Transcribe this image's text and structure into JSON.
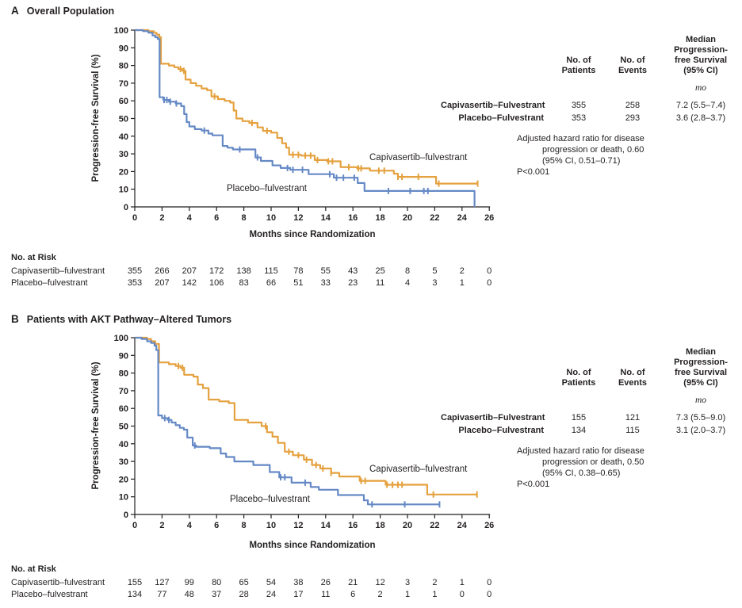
{
  "colors": {
    "capivasertib": "#E5A13E",
    "placebo": "#6589C5",
    "axis": "#231F20"
  },
  "figure": {
    "panels": [
      {
        "label": "A",
        "title": "Overall Population",
        "ylabel": "Progression-free Survival (%)",
        "xlabel": "Months since Randomization",
        "curve_labels": {
          "capivasertib": "Capivasertib–fulvestrant",
          "placebo": "Placebo–fulvestrant"
        },
        "stats": {
          "col_headers": [
            "No. of\nPatients",
            "No. of\nEvents",
            "Median\nProgression-\nfree Survival\n(95% CI)"
          ],
          "unit": "mo",
          "rows": [
            {
              "label": "Capivasertib–Fulvestrant",
              "patients": "355",
              "events": "258",
              "median": "7.2 (5.5–7.4)"
            },
            {
              "label": "Placebo–Fulvestrant",
              "patients": "353",
              "events": "293",
              "median": "3.6 (2.8–3.7)"
            }
          ],
          "hazard_lines": [
            "Adjusted hazard ratio for disease",
            "progression or death, 0.60",
            "(95% CI, 0.51–0.71)"
          ],
          "p_value": "P<0.001"
        },
        "risk": {
          "title": "No. at Risk",
          "rows": [
            {
              "label": "Capivasertib–fulvestrant",
              "values": [
                355,
                266,
                207,
                172,
                138,
                115,
                78,
                55,
                43,
                25,
                8,
                5,
                2,
                0
              ]
            },
            {
              "label": "Placebo–fulvestrant",
              "values": [
                353,
                207,
                142,
                106,
                83,
                66,
                51,
                33,
                23,
                11,
                4,
                3,
                1,
                0
              ]
            }
          ]
        }
      },
      {
        "label": "B",
        "title": "Patients with AKT Pathway–Altered Tumors",
        "ylabel": "Progression-free Survival (%)",
        "xlabel": "Months since Randomization",
        "curve_labels": {
          "capivasertib": "Capivasertib–fulvestrant",
          "placebo": "Placebo–fulvestrant"
        },
        "stats": {
          "col_headers": [
            "No. of\nPatients",
            "No. of\nEvents",
            "Median\nProgression-\nfree Survival\n(95% CI)"
          ],
          "unit": "mo",
          "rows": [
            {
              "label": "Capivasertib–Fulvestrant",
              "patients": "155",
              "events": "121",
              "median": "7.3 (5.5–9.0)"
            },
            {
              "label": "Placebo–Fulvestrant",
              "patients": "134",
              "events": "115",
              "median": "3.1 (2.0–3.7)"
            }
          ],
          "hazard_lines": [
            "Adjusted hazard ratio for disease",
            "progression or death, 0.50",
            "(95% CI, 0.38–0.65)"
          ],
          "p_value": "P<0.001"
        },
        "risk": {
          "title": "No. at Risk",
          "rows": [
            {
              "label": "Capivasertib–fulvestrant",
              "values": [
                155,
                127,
                99,
                80,
                65,
                54,
                38,
                26,
                21,
                12,
                3,
                2,
                1,
                0
              ]
            },
            {
              "label": "Placebo–fulvestrant",
              "values": [
                134,
                77,
                48,
                37,
                28,
                24,
                17,
                11,
                6,
                2,
                1,
                1,
                0,
                0
              ]
            }
          ]
        }
      }
    ]
  },
  "chart_data": [
    {
      "type": "line",
      "panel": "A",
      "title": "Overall Population",
      "subtype": "kaplan-meier",
      "xlabel": "Months since Randomization",
      "ylabel": "Progression-free Survival (%)",
      "xlim": [
        0,
        26
      ],
      "ylim": [
        0,
        100
      ],
      "xticks": [
        0,
        2,
        4,
        6,
        8,
        10,
        12,
        14,
        16,
        18,
        20,
        22,
        24,
        26
      ],
      "yticks": [
        0,
        10,
        20,
        30,
        40,
        50,
        60,
        70,
        80,
        90,
        100
      ],
      "grid": false,
      "series": [
        {
          "key": "capivasertib",
          "name": "Capivasertib–fulvestrant",
          "color": "#E5A13E",
          "median_months": "7.2 (5.5–7.4)",
          "steps": [
            [
              0,
              100
            ],
            [
              1.0,
              99.4
            ],
            [
              1.4,
              98.5
            ],
            [
              1.6,
              97.5
            ],
            [
              1.8,
              96
            ],
            [
              1.92,
              81
            ],
            [
              2.5,
              80
            ],
            [
              2.9,
              79
            ],
            [
              3.2,
              78
            ],
            [
              3.5,
              77
            ],
            [
              3.72,
              72
            ],
            [
              4.1,
              70
            ],
            [
              4.5,
              68.5
            ],
            [
              4.9,
              67
            ],
            [
              5.3,
              66
            ],
            [
              5.62,
              62.5
            ],
            [
              6.1,
              61
            ],
            [
              6.6,
              60
            ],
            [
              7.0,
              59
            ],
            [
              7.25,
              54.5
            ],
            [
              7.45,
              50
            ],
            [
              7.9,
              48.5
            ],
            [
              8.4,
              47.5
            ],
            [
              9.0,
              45
            ],
            [
              9.4,
              43
            ],
            [
              10.0,
              42
            ],
            [
              10.45,
              39
            ],
            [
              10.8,
              36
            ],
            [
              11.1,
              33.5
            ],
            [
              11.32,
              29.5
            ],
            [
              12.2,
              29
            ],
            [
              13.2,
              26.5
            ],
            [
              14.1,
              25.8
            ],
            [
              15.1,
              22.5
            ],
            [
              16.3,
              21.8
            ],
            [
              17.25,
              20.5
            ],
            [
              19.0,
              18.8
            ],
            [
              19.3,
              17
            ],
            [
              22.1,
              13.2
            ],
            [
              25.15,
              13.2
            ]
          ],
          "censors": [
            3.35,
            3.6,
            5.85,
            8.6,
            9.7,
            11.6,
            12.0,
            12.5,
            12.9,
            13.4,
            14.2,
            14.5,
            15.7,
            16.4,
            16.6,
            17.9,
            18.3,
            19.3,
            19.6,
            20.8,
            22.3,
            25.15
          ]
        },
        {
          "key": "placebo",
          "name": "Placebo–fulvestrant",
          "color": "#6589C5",
          "median_months": "3.6 (2.8–3.7)",
          "steps": [
            [
              0,
              100
            ],
            [
              0.6,
              99.4
            ],
            [
              1.0,
              98.5
            ],
            [
              1.3,
              97
            ],
            [
              1.5,
              96
            ],
            [
              1.68,
              95
            ],
            [
              1.82,
              62
            ],
            [
              2.1,
              60.5
            ],
            [
              2.5,
              59.5
            ],
            [
              3.0,
              58.5
            ],
            [
              3.4,
              57
            ],
            [
              3.62,
              52.5
            ],
            [
              3.8,
              48
            ],
            [
              4.0,
              45.5
            ],
            [
              4.4,
              44
            ],
            [
              4.9,
              43.2
            ],
            [
              5.4,
              41.5
            ],
            [
              5.7,
              40.5
            ],
            [
              6.45,
              34.5
            ],
            [
              6.8,
              33.5
            ],
            [
              7.2,
              32.5
            ],
            [
              8.85,
              28
            ],
            [
              9.25,
              26
            ],
            [
              10.1,
              23.5
            ],
            [
              10.7,
              22
            ],
            [
              11.4,
              21
            ],
            [
              12.75,
              18.5
            ],
            [
              14.6,
              16.5
            ],
            [
              16.35,
              13.5
            ],
            [
              16.85,
              9
            ],
            [
              24.9,
              9
            ],
            [
              24.92,
              0
            ]
          ],
          "censors": [
            2.15,
            2.35,
            2.6,
            3.05,
            5.1,
            7.7,
            9.0,
            11.2,
            11.6,
            12.3,
            14.3,
            14.8,
            15.3,
            16.1,
            18.6,
            20.2,
            21.2,
            21.5
          ]
        }
      ],
      "annotations": [
        "Adjusted hazard ratio for disease progression or death, 0.60 (95% CI, 0.51–0.71)",
        "P<0.001"
      ]
    },
    {
      "type": "line",
      "panel": "B",
      "title": "Patients with AKT Pathway–Altered Tumors",
      "subtype": "kaplan-meier",
      "xlabel": "Months since Randomization",
      "ylabel": "Progression-free Survival (%)",
      "xlim": [
        0,
        26
      ],
      "ylim": [
        0,
        100
      ],
      "xticks": [
        0,
        2,
        4,
        6,
        8,
        10,
        12,
        14,
        16,
        18,
        20,
        22,
        24,
        26
      ],
      "yticks": [
        0,
        10,
        20,
        30,
        40,
        50,
        60,
        70,
        80,
        90,
        100
      ],
      "grid": false,
      "series": [
        {
          "key": "capivasertib",
          "name": "Capivasertib–fulvestrant",
          "color": "#E5A13E",
          "median_months": "7.3 (5.5–9.0)",
          "steps": [
            [
              0,
              100
            ],
            [
              0.9,
              99.3
            ],
            [
              1.2,
              98
            ],
            [
              1.5,
              96.5
            ],
            [
              1.78,
              86
            ],
            [
              2.5,
              85
            ],
            [
              3.0,
              84
            ],
            [
              3.35,
              83
            ],
            [
              3.62,
              79
            ],
            [
              4.3,
              78
            ],
            [
              4.62,
              73.5
            ],
            [
              5.0,
              71.5
            ],
            [
              5.42,
              65
            ],
            [
              6.2,
              64
            ],
            [
              6.9,
              63
            ],
            [
              7.32,
              53.5
            ],
            [
              8.3,
              52
            ],
            [
              9.3,
              50
            ],
            [
              9.7,
              46.5
            ],
            [
              10.1,
              44
            ],
            [
              10.5,
              40.5
            ],
            [
              11.0,
              35.5
            ],
            [
              11.6,
              33.5
            ],
            [
              12.4,
              31
            ],
            [
              13.0,
              28
            ],
            [
              13.6,
              26
            ],
            [
              14.4,
              23.5
            ],
            [
              15.0,
              21.5
            ],
            [
              16.5,
              19
            ],
            [
              18.4,
              16.8
            ],
            [
              21.45,
              11.3
            ],
            [
              25.1,
              11.3
            ]
          ],
          "censors": [
            3.2,
            3.5,
            9.6,
            11.3,
            12.0,
            12.6,
            13.3,
            13.8,
            14.4,
            16.6,
            16.9,
            18.5,
            18.9,
            19.3,
            19.6,
            21.9,
            25.1
          ]
        },
        {
          "key": "placebo",
          "name": "Placebo–fulvestrant",
          "color": "#6589C5",
          "median_months": "3.1 (2.0–3.7)",
          "steps": [
            [
              0,
              100
            ],
            [
              0.5,
              99.3
            ],
            [
              0.9,
              98
            ],
            [
              1.2,
              97
            ],
            [
              1.45,
              95.5
            ],
            [
              1.58,
              93
            ],
            [
              1.72,
              56
            ],
            [
              2.0,
              54.5
            ],
            [
              2.4,
              53.5
            ],
            [
              2.7,
              52
            ],
            [
              3.0,
              50.5
            ],
            [
              3.3,
              49
            ],
            [
              3.6,
              48
            ],
            [
              3.85,
              43.5
            ],
            [
              4.25,
              39
            ],
            [
              4.5,
              38.3
            ],
            [
              5.5,
              37.5
            ],
            [
              6.3,
              34.5
            ],
            [
              6.7,
              32.5
            ],
            [
              7.3,
              30
            ],
            [
              8.7,
              28
            ],
            [
              9.9,
              24
            ],
            [
              10.6,
              21
            ],
            [
              11.5,
              18
            ],
            [
              12.9,
              15.5
            ],
            [
              13.5,
              14
            ],
            [
              14.9,
              11
            ],
            [
              16.8,
              8
            ],
            [
              17.1,
              5.7
            ],
            [
              22.35,
              5.7
            ]
          ],
          "censors": [
            2.2,
            2.5,
            4.4,
            10.7,
            11.0,
            12.5,
            17.4,
            19.8,
            22.35
          ]
        }
      ],
      "annotations": [
        "Adjusted hazard ratio for disease progression or death, 0.50 (95% CI, 0.38–0.65)",
        "P<0.001"
      ]
    }
  ]
}
